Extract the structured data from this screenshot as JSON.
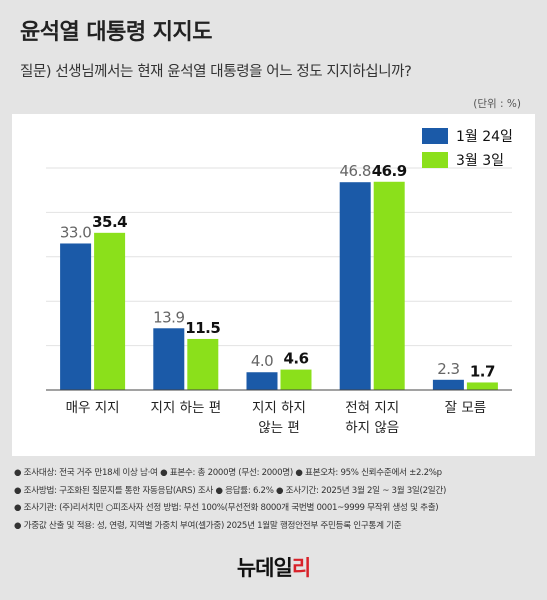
{
  "title": "윤석열 대통령 지지도",
  "question": "질문) 선생님께서는 현재 윤석열 대통령을 어느 정도 지지하십니까?",
  "unit_note": "(단위 : %)",
  "chart_data": {
    "type": "bar",
    "categories": [
      "매우 지지",
      "지지 하는 편",
      "지지 하지 않는 편",
      "전혀 지지 하지 않음",
      "잘 모름"
    ],
    "category_lines": [
      [
        "매우 지지"
      ],
      [
        "지지 하는 편"
      ],
      [
        "지지 하지",
        "않는 편"
      ],
      [
        "전혀 지지",
        "하지 않음"
      ],
      [
        "잘 모름"
      ]
    ],
    "series": [
      {
        "name": "1월 24일",
        "values": [
          33.0,
          13.9,
          4.0,
          46.8,
          2.3
        ],
        "color": "#1b5aa8"
      },
      {
        "name": "3월 3일",
        "values": [
          35.4,
          11.5,
          4.6,
          46.9,
          1.7
        ],
        "color": "#8be01b"
      }
    ],
    "value_labels": [
      [
        "33.0",
        "13.9",
        "4.0",
        "46.8",
        "2.3"
      ],
      [
        "35.4",
        "11.5",
        "4.6",
        "46.9",
        "1.7"
      ]
    ],
    "ylim": [
      0,
      50
    ],
    "grid": true,
    "legend_position": "top-right"
  },
  "notes": [
    "조사대상: 전국 거주 만18세 이상 남·여  ● 표본수: 총 2000명 (무선: 2000명)  ● 표본오차: 95% 신뢰수준에서 ±2.2%p",
    "조사방법: 구조화된 질문지를 통한 자동응답(ARS) 조사  ● 응답률: 6.2%  ● 조사기간: 2025년 3월 2일 ~ 3월 3일(2일간)",
    "조사기관: (주)리서치민  ○피조사자 선정 방법: 무선 100%(무선전화 8000개 국번별 0001~9999 무작위 생성 및 추출)",
    "가중값 산출 및 적용: 성, 연령, 지역별 가중치 부여(셀가중) 2025년 1월말 행정안전부 주민등록 인구통계 기준"
  ],
  "logo": {
    "part1": "뉴데일",
    "part2": "리"
  }
}
